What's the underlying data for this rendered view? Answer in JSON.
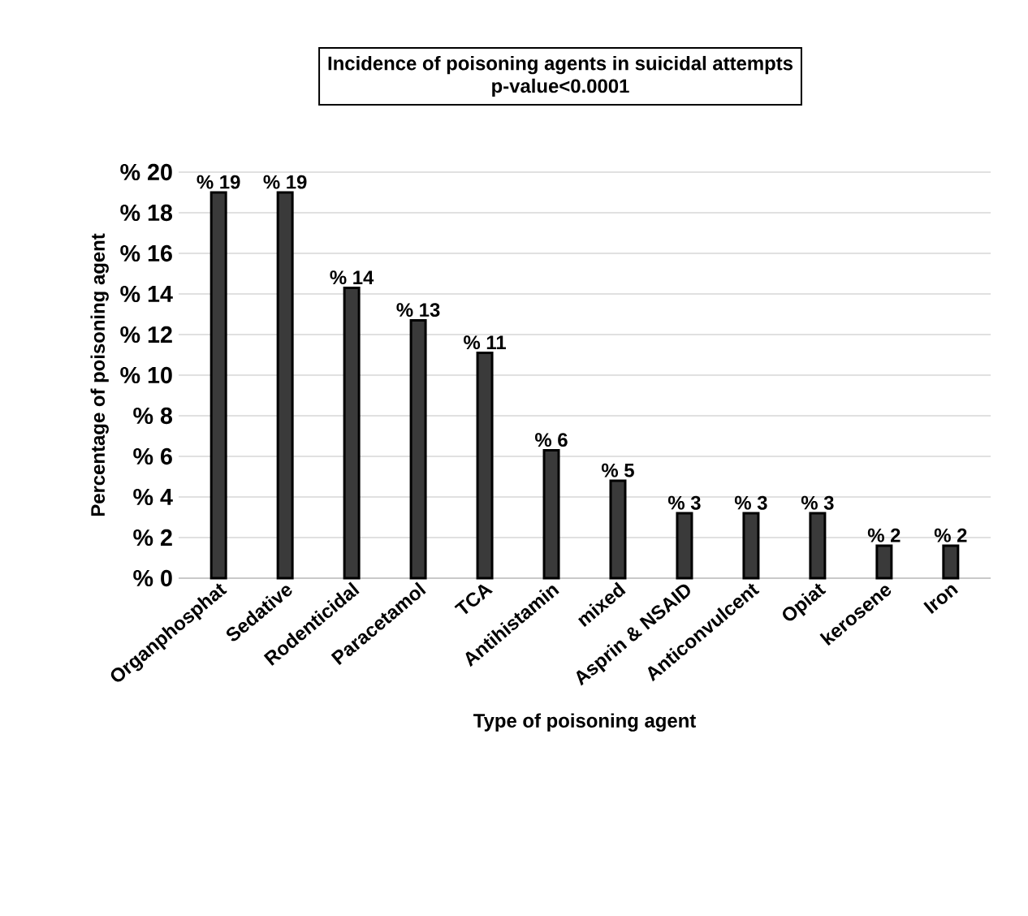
{
  "chart_data": {
    "type": "bar",
    "title": "Incidence of poisoning agents in suicidal attempts",
    "subtitle": "p-value<0.0001",
    "xlabel": "Type of poisoning agent",
    "ylabel": "Percentage of poisoning agent",
    "categories": [
      "Organphosphat",
      "Sedative",
      "Rodenticidal",
      "Paracetamol",
      "TCA",
      "Antihistamin",
      "mixed",
      "Asprin & NSAID",
      "Anticonvulcent",
      "Opiat",
      "kerosene",
      "Iron"
    ],
    "values": [
      19,
      19,
      14.3,
      12.7,
      11.1,
      6.3,
      4.8,
      3.2,
      3.2,
      3.2,
      1.6,
      1.6
    ],
    "value_labels": [
      "% 19",
      "% 19",
      "% 14",
      "% 13",
      "% 11",
      "% 6",
      "% 5",
      "% 3",
      "% 3",
      "% 3",
      "% 2",
      "% 2"
    ],
    "color": "#3a3a3a",
    "ylim": [
      0,
      20
    ],
    "yticks": [
      {
        "value": 0,
        "label": "% 0"
      },
      {
        "value": 2,
        "label": "% 2"
      },
      {
        "value": 4,
        "label": "% 4"
      },
      {
        "value": 6,
        "label": "% 6"
      },
      {
        "value": 8,
        "label": "% 8"
      },
      {
        "value": 10,
        "label": "% 10"
      },
      {
        "value": 12,
        "label": "% 12"
      },
      {
        "value": 14,
        "label": "% 14"
      },
      {
        "value": 16,
        "label": "% 16"
      },
      {
        "value": 18,
        "label": "% 18"
      },
      {
        "value": 20,
        "label": "% 20"
      }
    ],
    "grid": "y"
  }
}
